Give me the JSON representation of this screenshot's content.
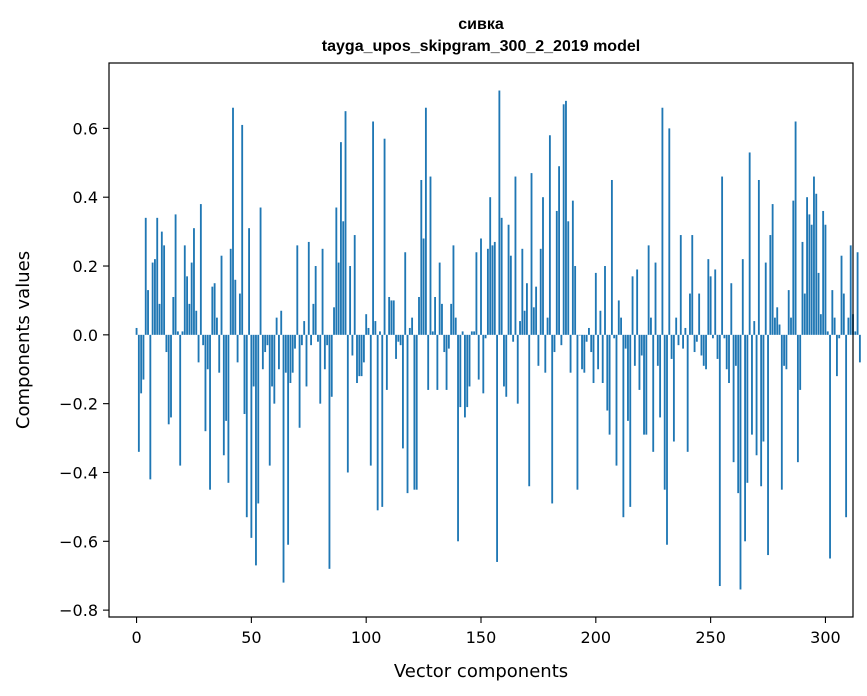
{
  "chart_data": {
    "type": "bar",
    "title": "сивка",
    "subtitle": "tayga_upos_skipgram_300_2_2019 model",
    "xlabel": "Vector components",
    "ylabel": "Components values",
    "xlim": [
      -12,
      312
    ],
    "ylim": [
      -0.82,
      0.79
    ],
    "xticks": [
      0,
      50,
      100,
      150,
      200,
      250,
      300
    ],
    "yticks": [
      0.6,
      0.4,
      0.2,
      0.0,
      -0.2,
      -0.4,
      -0.6,
      -0.8
    ],
    "ytick_labels": [
      "0.6",
      "0.4",
      "0.2",
      "0.0",
      "−0.2",
      "−0.4",
      "−0.6",
      "−0.8"
    ],
    "series": [
      {
        "name": "сивка",
        "color": "#1f77b4",
        "values": [
          0.02,
          -0.34,
          -0.17,
          -0.13,
          0.34,
          0.13,
          -0.42,
          0.21,
          0.22,
          0.34,
          0.09,
          0.3,
          0.26,
          -0.05,
          -0.26,
          -0.24,
          0.11,
          0.35,
          0.01,
          -0.38,
          0.01,
          0.26,
          0.17,
          0.09,
          0.21,
          0.31,
          0.07,
          -0.08,
          0.38,
          -0.03,
          -0.28,
          -0.1,
          -0.45,
          0.14,
          0.15,
          0.05,
          -0.11,
          0.23,
          -0.35,
          -0.25,
          -0.43,
          0.25,
          0.66,
          0.16,
          -0.08,
          0.12,
          0.61,
          -0.23,
          -0.53,
          0.31,
          -0.59,
          -0.15,
          -0.67,
          -0.49,
          0.37,
          -0.1,
          -0.05,
          -0.03,
          -0.38,
          -0.15,
          -0.2,
          0.05,
          -0.1,
          0.07,
          -0.72,
          -0.11,
          -0.61,
          -0.14,
          -0.11,
          -0.04,
          0.26,
          -0.27,
          -0.03,
          0.04,
          -0.15,
          0.27,
          -0.03,
          0.09,
          0.2,
          -0.02,
          -0.2,
          0.25,
          -0.1,
          -0.03,
          -0.68,
          -0.18,
          0.08,
          0.37,
          0.21,
          0.56,
          0.33,
          0.65,
          -0.4,
          0.2,
          -0.06,
          0.29,
          -0.14,
          -0.12,
          -0.12,
          -0.08,
          0.06,
          0.02,
          -0.38,
          0.62,
          0.04,
          -0.51,
          0.01,
          -0.5,
          0.57,
          -0.16,
          0.11,
          0.1,
          0.1,
          -0.07,
          -0.02,
          -0.03,
          -0.33,
          0.24,
          -0.46,
          0.02,
          0.05,
          -0.45,
          -0.45,
          0.11,
          0.45,
          0.28,
          0.66,
          -0.16,
          0.46,
          0.01,
          0.11,
          -0.16,
          0.21,
          0.09,
          -0.05,
          -0.16,
          -0.04,
          0.09,
          0.26,
          0.05,
          -0.6,
          -0.21,
          0.01,
          -0.24,
          -0.21,
          -0.15,
          0.01,
          0.01,
          0.24,
          -0.13,
          0.28,
          -0.17,
          -0.01,
          0.25,
          0.4,
          0.26,
          0.27,
          -0.66,
          0.71,
          0.34,
          -0.15,
          -0.18,
          0.32,
          0.23,
          -0.02,
          0.46,
          -0.2,
          0.04,
          0.25,
          0.07,
          0.15,
          -0.44,
          0.47,
          0.08,
          0.14,
          -0.09,
          0.25,
          0.4,
          -0.11,
          0.05,
          0.58,
          -0.49,
          -0.05,
          0.36,
          0.49,
          -0.03,
          0.67,
          0.68,
          0.33,
          -0.11,
          0.39,
          0.2,
          -0.45,
          0.0,
          -0.1,
          -0.11,
          -0.02,
          0.02,
          -0.05,
          -0.14,
          0.18,
          -0.1,
          0.07,
          -0.14,
          0.2,
          -0.22,
          -0.29,
          0.45,
          -0.01,
          -0.38,
          0.1,
          0.05,
          -0.53,
          -0.04,
          -0.25,
          -0.5,
          0.17,
          -0.09,
          0.19,
          -0.16,
          -0.06,
          -0.29,
          -0.29,
          0.26,
          0.05,
          -0.34,
          0.21,
          -0.09,
          -0.24,
          0.66,
          -0.45,
          -0.61,
          0.6,
          -0.07,
          -0.31,
          0.05,
          -0.03,
          0.29,
          -0.04,
          0.02,
          -0.34,
          0.12,
          0.29,
          -0.05,
          -0.02,
          0.12,
          -0.06,
          -0.09,
          -0.1,
          0.22,
          0.17,
          -0.01,
          0.19,
          -0.07,
          -0.73,
          0.46,
          -0.01,
          -0.1,
          -0.14,
          0.15,
          -0.37,
          -0.09,
          -0.46,
          -0.74,
          0.22,
          -0.6,
          -0.43,
          0.53,
          -0.29,
          0.04,
          -0.35,
          0.45,
          -0.44,
          -0.31,
          0.21,
          -0.64,
          0.29,
          0.38,
          0.05,
          0.08,
          0.03,
          -0.45,
          -0.09,
          -0.1,
          0.13,
          0.05,
          0.39,
          0.62,
          -0.37,
          -0.16,
          0.27,
          0.12,
          0.4,
          0.35,
          0.32,
          0.46,
          0.41,
          0.18,
          0.06,
          0.36,
          0.32,
          0.01,
          -0.65,
          0.13,
          0.05,
          -0.12,
          -0.01,
          0.23,
          0.12,
          -0.53,
          0.05,
          0.26,
          0.06,
          0.01,
          0.24,
          -0.08
        ]
      }
    ]
  }
}
